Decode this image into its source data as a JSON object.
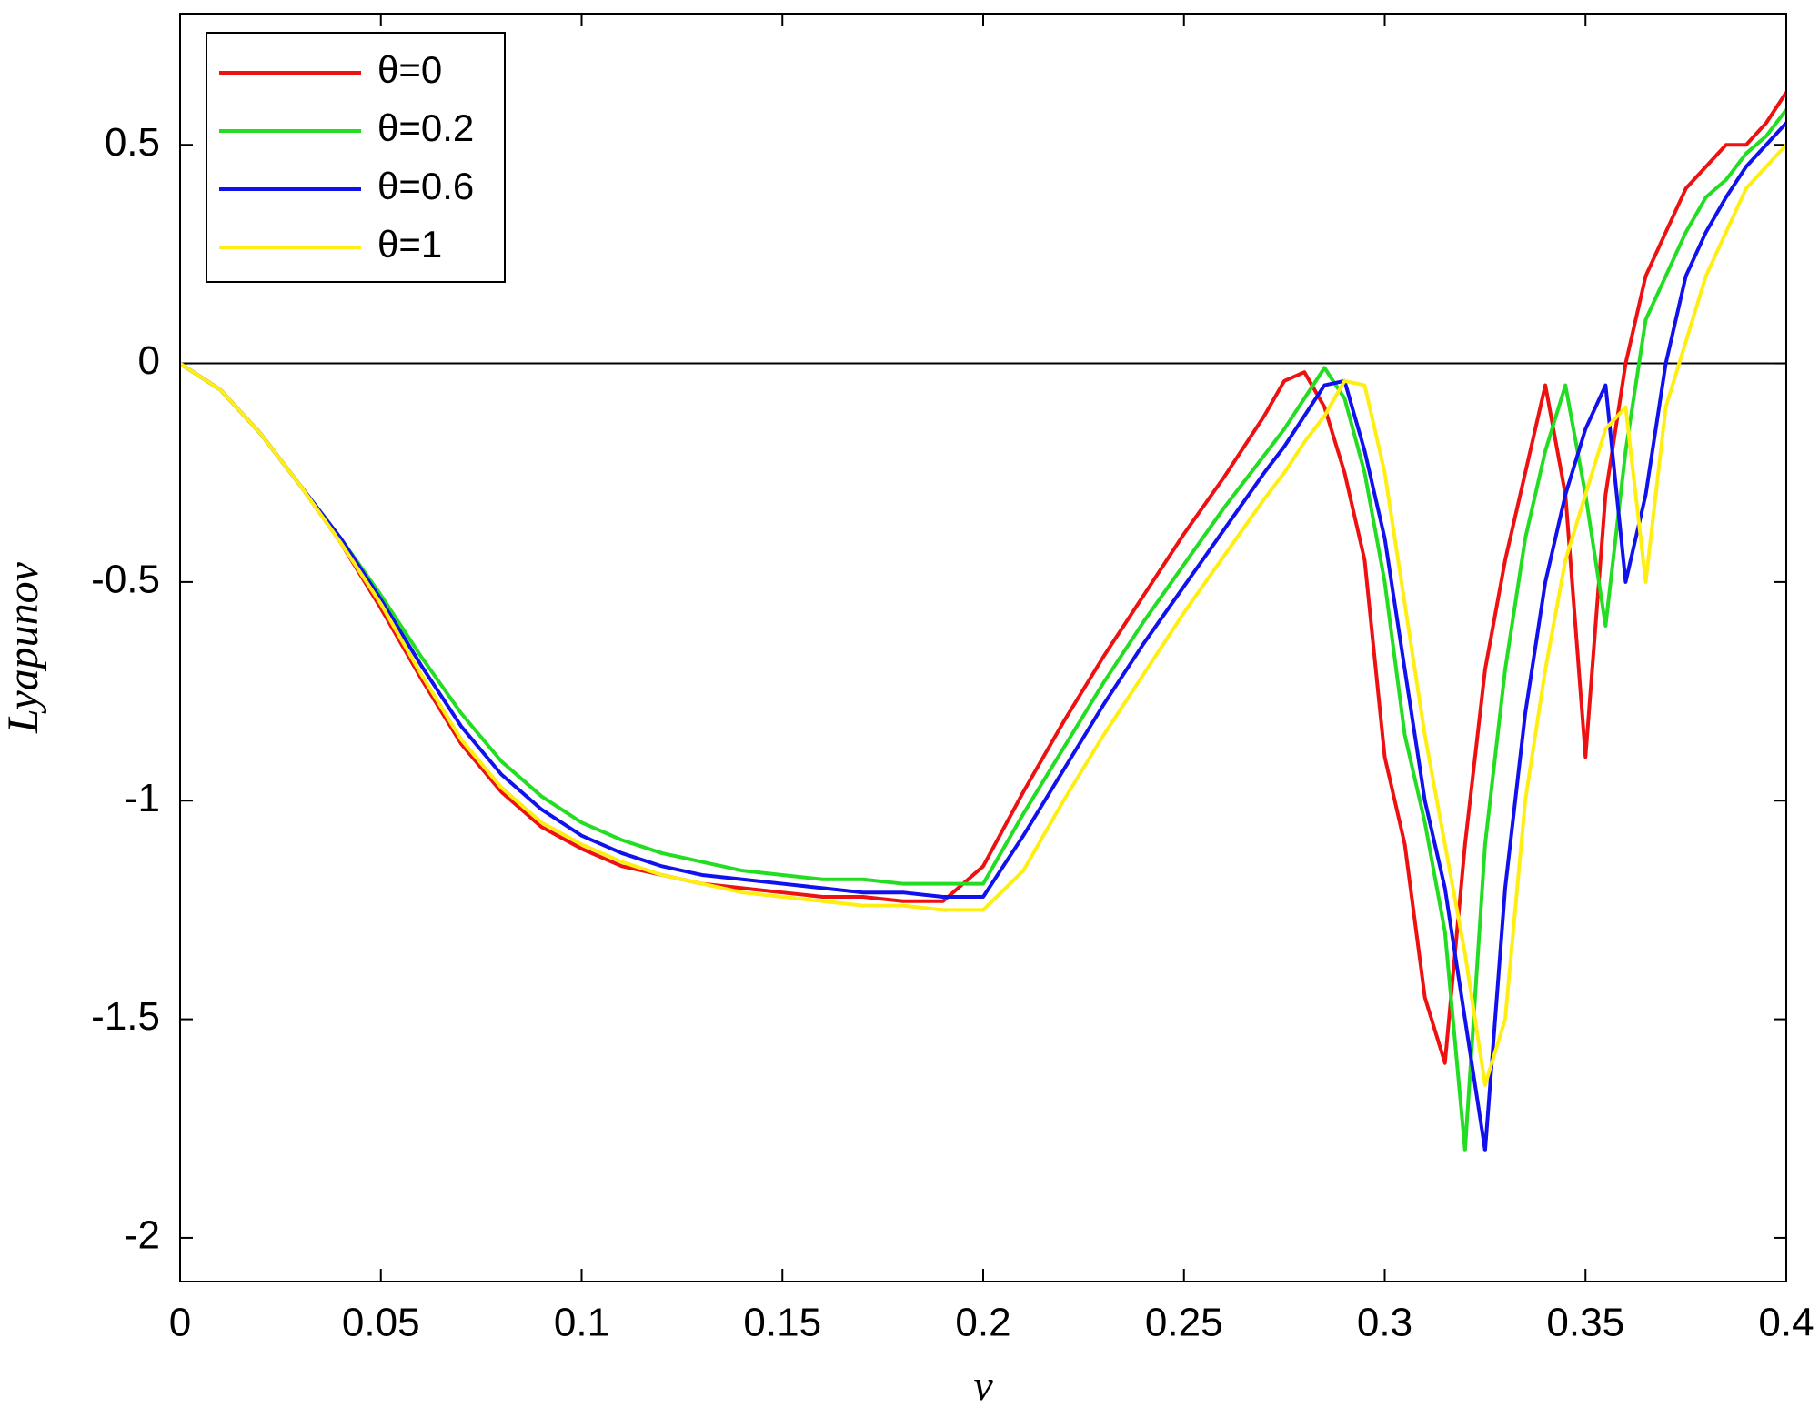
{
  "chart_data": {
    "type": "line",
    "xlabel": "v",
    "ylabel": "Lyapunov",
    "x": [
      0,
      0.01,
      0.02,
      0.03,
      0.04,
      0.05,
      0.06,
      0.07,
      0.08,
      0.09,
      0.1,
      0.11,
      0.12,
      0.13,
      0.14,
      0.15,
      0.16,
      0.17,
      0.18,
      0.19,
      0.2,
      0.21,
      0.22,
      0.23,
      0.24,
      0.25,
      0.26,
      0.27,
      0.275,
      0.28,
      0.285,
      0.29,
      0.295,
      0.3,
      0.305,
      0.31,
      0.315,
      0.32,
      0.325,
      0.33,
      0.335,
      0.34,
      0.345,
      0.35,
      0.355,
      0.36,
      0.365,
      0.37,
      0.375,
      0.38,
      0.385,
      0.39,
      0.395,
      0.4
    ],
    "series": [
      {
        "name": "θ=0",
        "color": "#ee1111",
        "values": [
          0,
          -0.06,
          -0.16,
          -0.28,
          -0.41,
          -0.56,
          -0.72,
          -0.87,
          -0.98,
          -1.06,
          -1.11,
          -1.15,
          -1.17,
          -1.19,
          -1.2,
          -1.21,
          -1.22,
          -1.22,
          -1.23,
          -1.23,
          -1.15,
          -0.98,
          -0.82,
          -0.67,
          -0.53,
          -0.39,
          -0.26,
          -0.12,
          -0.04,
          -0.02,
          -0.1,
          -0.25,
          -0.45,
          -0.9,
          -1.1,
          -1.45,
          -1.6,
          -1.1,
          -0.7,
          -0.45,
          -0.25,
          -0.05,
          -0.3,
          -0.9,
          -0.3,
          0,
          0.2,
          0.3,
          0.4,
          0.45,
          0.5,
          0.5,
          0.55,
          0.62
        ]
      },
      {
        "name": "θ=0.2",
        "color": "#22dd22",
        "values": [
          0,
          -0.06,
          -0.16,
          -0.28,
          -0.4,
          -0.53,
          -0.67,
          -0.8,
          -0.91,
          -0.99,
          -1.05,
          -1.09,
          -1.12,
          -1.14,
          -1.16,
          -1.17,
          -1.18,
          -1.18,
          -1.19,
          -1.19,
          -1.19,
          -1.03,
          -0.88,
          -0.73,
          -0.59,
          -0.46,
          -0.33,
          -0.21,
          -0.15,
          -0.08,
          -0.01,
          -0.08,
          -0.25,
          -0.5,
          -0.85,
          -1.05,
          -1.3,
          -1.8,
          -1.1,
          -0.7,
          -0.4,
          -0.2,
          -0.05,
          -0.3,
          -0.6,
          -0.2,
          0.1,
          0.2,
          0.3,
          0.38,
          0.42,
          0.48,
          0.52,
          0.58
        ]
      },
      {
        "name": "θ=0.6",
        "color": "#1111ee",
        "values": [
          0,
          -0.06,
          -0.16,
          -0.28,
          -0.4,
          -0.54,
          -0.69,
          -0.83,
          -0.94,
          -1.02,
          -1.08,
          -1.12,
          -1.15,
          -1.17,
          -1.18,
          -1.19,
          -1.2,
          -1.21,
          -1.21,
          -1.22,
          -1.22,
          -1.08,
          -0.93,
          -0.78,
          -0.64,
          -0.51,
          -0.38,
          -0.25,
          -0.19,
          -0.12,
          -0.05,
          -0.04,
          -0.2,
          -0.4,
          -0.7,
          -1,
          -1.2,
          -1.5,
          -1.8,
          -1.2,
          -0.8,
          -0.5,
          -0.3,
          -0.15,
          -0.05,
          -0.5,
          -0.3,
          0,
          0.2,
          0.3,
          0.38,
          0.45,
          0.5,
          0.55
        ]
      },
      {
        "name": "θ=1",
        "color": "#ffee11",
        "values": [
          0,
          -0.06,
          -0.16,
          -0.28,
          -0.41,
          -0.55,
          -0.71,
          -0.86,
          -0.97,
          -1.05,
          -1.1,
          -1.14,
          -1.17,
          -1.19,
          -1.21,
          -1.22,
          -1.23,
          -1.24,
          -1.24,
          -1.25,
          -1.25,
          -1.16,
          -1,
          -0.85,
          -0.71,
          -0.57,
          -0.44,
          -0.31,
          -0.25,
          -0.18,
          -0.12,
          -0.04,
          -0.05,
          -0.25,
          -0.55,
          -0.85,
          -1.1,
          -1.35,
          -1.65,
          -1.5,
          -1,
          -0.7,
          -0.45,
          -0.3,
          -0.15,
          -0.1,
          -0.5,
          -0.1,
          0.05,
          0.2,
          0.3,
          0.4,
          0.45,
          0.5
        ]
      }
    ],
    "xlim": [
      0,
      0.4
    ],
    "ylim": [
      -2.1,
      0.8
    ],
    "xticks": [
      0,
      0.05,
      0.1,
      0.15,
      0.2,
      0.25,
      0.3,
      0.35,
      0.4
    ],
    "yticks": [
      -2,
      -1.5,
      -1,
      -0.5,
      0,
      0.5
    ],
    "legend": "upper-left"
  }
}
